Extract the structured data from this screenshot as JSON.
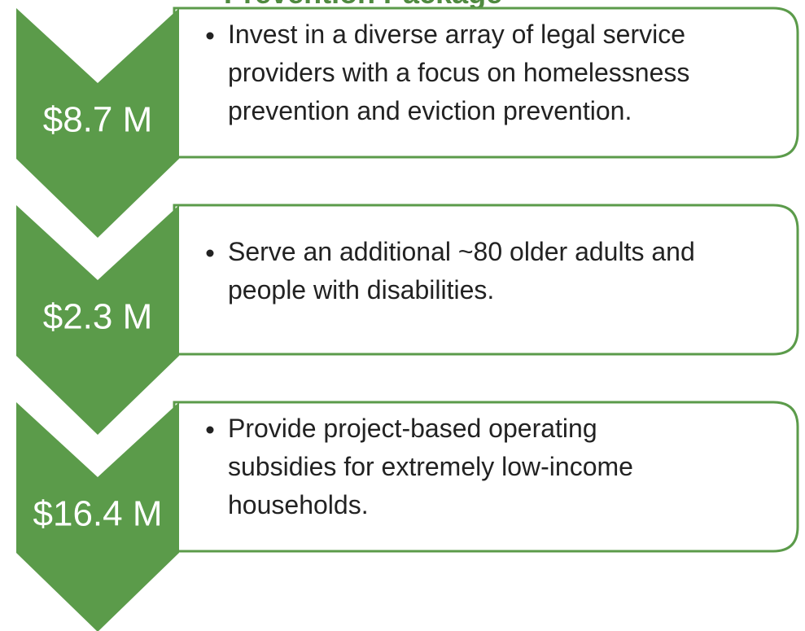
{
  "title": "Prevention Package",
  "items": [
    {
      "amount": "$8.7 M",
      "lines": [
        "Invest in a diverse array of legal service",
        "providers with a focus on homelessness",
        "prevention and eviction prevention."
      ]
    },
    {
      "amount": "$2.3 M",
      "lines": [
        "Serve an additional ~80 older adults and",
        "people with disabilities."
      ]
    },
    {
      "amount": "$16.4 M",
      "lines": [
        "Provide project-based operating",
        "subsidies for extremely low-income",
        "households."
      ]
    }
  ]
}
